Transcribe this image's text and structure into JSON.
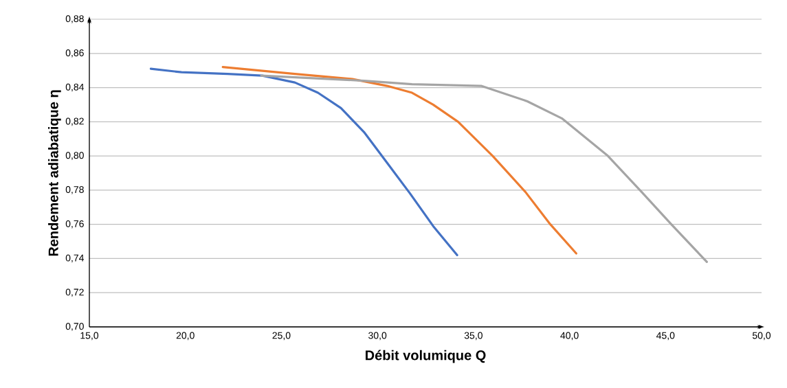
{
  "chart_data": {
    "type": "line",
    "xlabel": "Débit volumique Q",
    "ylabel": "Rendement adiabatique η",
    "xlim": [
      15,
      50
    ],
    "ylim": [
      0.7,
      0.88
    ],
    "xticks": [
      {
        "value": 15,
        "label": "15,0"
      },
      {
        "value": 20,
        "label": "20,0"
      },
      {
        "value": 25,
        "label": "25,0"
      },
      {
        "value": 30,
        "label": "30,0"
      },
      {
        "value": 35,
        "label": "35,0"
      },
      {
        "value": 40,
        "label": "40,0"
      },
      {
        "value": 45,
        "label": "45,0"
      },
      {
        "value": 50,
        "label": "50,0"
      }
    ],
    "yticks": [
      {
        "value": 0.7,
        "label": "0,70"
      },
      {
        "value": 0.72,
        "label": "0,72"
      },
      {
        "value": 0.74,
        "label": "0,74"
      },
      {
        "value": 0.76,
        "label": "0,76"
      },
      {
        "value": 0.78,
        "label": "0,78"
      },
      {
        "value": 0.8,
        "label": "0,80"
      },
      {
        "value": 0.82,
        "label": "0,82"
      },
      {
        "value": 0.84,
        "label": "0,84"
      },
      {
        "value": 0.86,
        "label": "0,86"
      },
      {
        "value": 0.88,
        "label": "0,88"
      }
    ],
    "grid": "y",
    "marker": "none",
    "line_style": "solid",
    "series": [
      {
        "color": "#4472c4",
        "x": [
          18.2,
          19.8,
          22.2,
          24.0,
          25.7,
          26.9,
          28.1,
          29.3,
          30.5,
          31.7,
          32.9,
          34.15
        ],
        "values": [
          0.851,
          0.849,
          0.848,
          0.847,
          0.843,
          0.837,
          0.828,
          0.814,
          0.796,
          0.778,
          0.759,
          0.742
        ]
      },
      {
        "color": "#ed7d31",
        "x": [
          21.95,
          25.7,
          28.7,
          30.5,
          31.8,
          32.9,
          34.2,
          36.0,
          37.7,
          39.0,
          40.35
        ],
        "values": [
          0.852,
          0.848,
          0.845,
          0.841,
          0.837,
          0.83,
          0.82,
          0.8,
          0.779,
          0.76,
          0.743
        ]
      },
      {
        "color": "#a5a5a5",
        "x": [
          23.95,
          29.3,
          31.8,
          35.4,
          37.8,
          39.6,
          42.0,
          43.75,
          45.3,
          47.15
        ],
        "values": [
          0.847,
          0.844,
          0.842,
          0.841,
          0.832,
          0.822,
          0.8,
          0.779,
          0.76,
          0.738
        ]
      }
    ]
  }
}
